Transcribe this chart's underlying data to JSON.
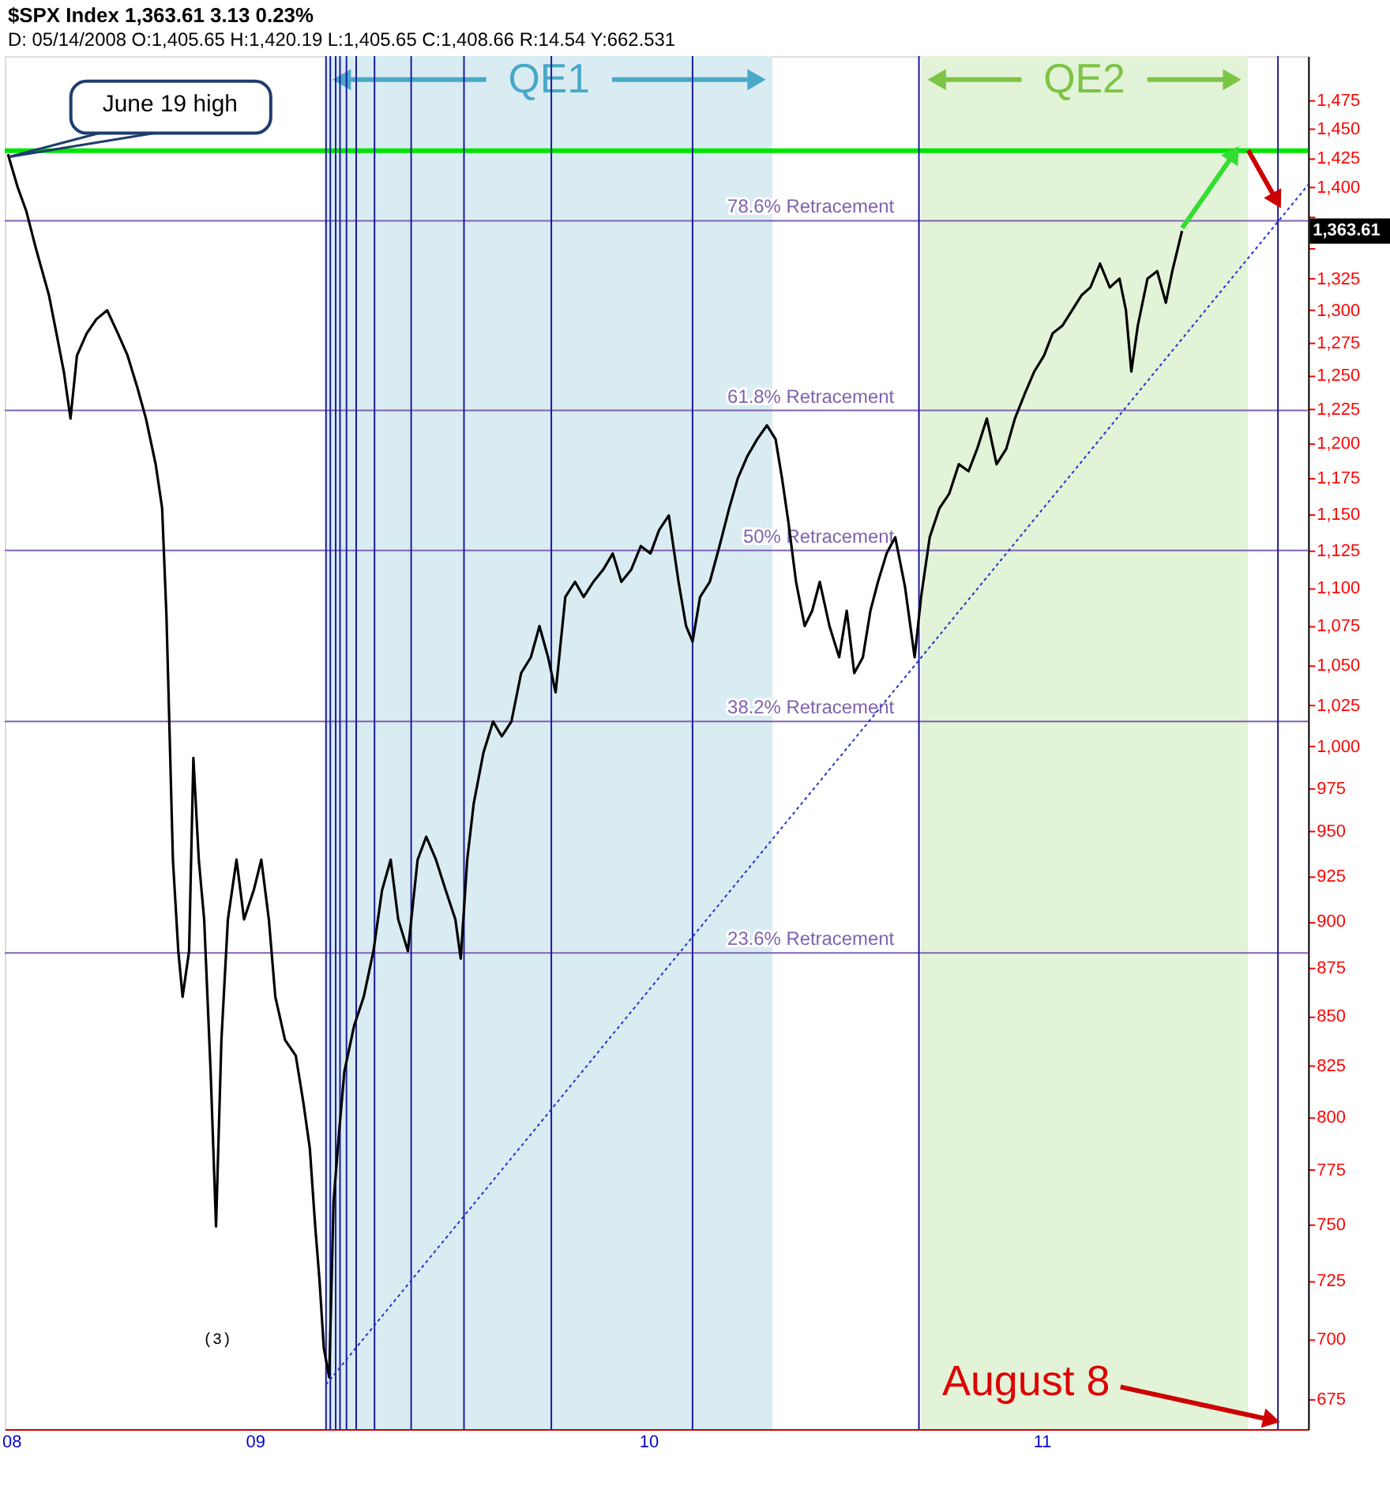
{
  "chart_data": {
    "type": "line",
    "title": "$SPX Index  1,363.61  3.13  0.23%",
    "subtitle": "D: 05/14/2008 O:1,405.65 H:1,420.19 L:1,405.65 C:1,408.66 R:14.54 Y:662.531",
    "x": [
      "2008-05-17",
      "2008-05-26",
      "2008-06-03",
      "2008-06-12",
      "2008-06-24",
      "2008-07-01",
      "2008-07-08",
      "2008-07-14",
      "2008-07-20",
      "2008-07-29",
      "2008-08-07",
      "2008-08-17",
      "2008-08-27",
      "2008-09-05",
      "2008-09-14",
      "2008-09-22",
      "2008-10-01",
      "2008-10-07",
      "2008-10-11",
      "2008-10-14",
      "2008-10-17",
      "2008-10-22",
      "2008-10-26",
      "2008-11-01",
      "2008-11-05",
      "2008-11-10",
      "2008-11-15",
      "2008-11-21",
      "2008-11-26",
      "2008-12-01",
      "2008-12-07",
      "2008-12-15",
      "2008-12-22",
      "2008-12-31",
      "2009-01-07",
      "2009-01-14",
      "2009-01-20",
      "2009-01-29",
      "2009-02-08",
      "2009-02-15",
      "2009-02-21",
      "2009-02-26",
      "2009-03-02",
      "2009-03-06",
      "2009-03-11",
      "2009-03-15",
      "2009-03-20",
      "2009-03-25",
      "2009-04-03",
      "2009-04-12",
      "2009-04-21",
      "2009-04-29",
      "2009-05-07",
      "2009-05-14",
      "2009-05-23",
      "2009-06-01",
      "2009-06-09",
      "2009-06-18",
      "2009-06-27",
      "2009-07-06",
      "2009-07-11",
      "2009-07-17",
      "2009-07-23",
      "2009-08-01",
      "2009-08-10",
      "2009-08-18",
      "2009-08-27",
      "2009-09-05",
      "2009-09-14",
      "2009-09-22",
      "2009-09-30",
      "2009-10-07",
      "2009-10-16",
      "2009-10-25",
      "2009-11-02",
      "2009-11-11",
      "2009-11-20",
      "2009-11-29",
      "2009-12-07",
      "2009-12-16",
      "2009-12-25",
      "2010-01-03",
      "2010-01-11",
      "2010-01-20",
      "2010-01-29",
      "2010-02-05",
      "2010-02-11",
      "2010-02-18",
      "2010-02-27",
      "2010-03-08",
      "2010-03-17",
      "2010-03-25",
      "2010-04-03",
      "2010-04-12",
      "2010-04-21",
      "2010-04-29",
      "2010-05-05",
      "2010-05-11",
      "2010-05-18",
      "2010-05-26",
      "2010-06-02",
      "2010-06-09",
      "2010-06-18",
      "2010-06-27",
      "2010-07-04",
      "2010-07-11",
      "2010-07-19",
      "2010-07-26",
      "2010-08-02",
      "2010-08-10",
      "2010-08-18",
      "2010-08-27",
      "2010-09-05",
      "2010-09-11",
      "2010-09-19",
      "2010-09-28",
      "2010-10-07",
      "2010-10-16",
      "2010-10-25",
      "2010-11-02",
      "2010-11-11",
      "2010-11-20",
      "2010-11-29",
      "2010-12-07",
      "2010-12-16",
      "2010-12-25",
      "2011-01-03",
      "2011-01-11",
      "2011-01-20",
      "2011-01-29",
      "2011-02-07",
      "2011-02-15",
      "2011-02-24",
      "2011-03-05",
      "2011-03-14",
      "2011-03-20",
      "2011-03-25",
      "2011-03-31",
      "2011-04-09",
      "2011-04-18",
      "2011-04-26",
      "2011-05-02",
      "2011-05-11"
    ],
    "series": [
      {
        "color": "#000000",
        "values": [
          1428,
          1400,
          1380,
          1349,
          1312,
          1282,
          1252,
          1218,
          1265,
          1282,
          1293,
          1300,
          1282,
          1265,
          1241,
          1218,
          1185,
          1154,
          1082,
          1006,
          934,
          884,
          860,
          884,
          993,
          934,
          901,
          822,
          749,
          838,
          901,
          934,
          901,
          917,
          934,
          901,
          860,
          838,
          830,
          807,
          785,
          749,
          725,
          696,
          684,
          760,
          792,
          822,
          845,
          860,
          884,
          917,
          934,
          901,
          884,
          934,
          947,
          934,
          917,
          901,
          880,
          934,
          966,
          996,
          1015,
          1006,
          1015,
          1045,
          1055,
          1075,
          1055,
          1033,
          1094,
          1104,
          1094,
          1104,
          1112,
          1123,
          1104,
          1112,
          1128,
          1123,
          1139,
          1149,
          1104,
          1075,
          1065,
          1094,
          1104,
          1128,
          1154,
          1175,
          1191,
          1203,
          1213,
          1203,
          1175,
          1144,
          1104,
          1075,
          1085,
          1104,
          1075,
          1055,
          1085,
          1045,
          1055,
          1085,
          1104,
          1123,
          1134,
          1101,
          1055,
          1094,
          1134,
          1154,
          1164,
          1185,
          1180,
          1196,
          1218,
          1185,
          1196,
          1218,
          1236,
          1253,
          1265,
          1282,
          1288,
          1300,
          1312,
          1318,
          1337,
          1318,
          1325,
          1300,
          1253,
          1288,
          1325,
          1331,
          1306,
          1331,
          1363.61
        ]
      },
      {
        "type": "line",
        "color": "#2233cc",
        "line_style": "dotted",
        "x": [
          "2009-03-08",
          "2011-09-05"
        ],
        "values": [
          681,
          1402
        ]
      }
    ],
    "xlim": [
      "2008-05-14",
      "2011-09-05"
    ],
    "xticks": [
      {
        "value": "2008-05-20",
        "label": "08"
      },
      {
        "value": "2009-01-01",
        "label": "09"
      },
      {
        "value": "2010-01-01",
        "label": "10"
      },
      {
        "value": "2011-01-01",
        "label": "11"
      }
    ],
    "ylim": [
      663,
      1515
    ],
    "yticks": [
      {
        "value": 675,
        "label": "675"
      },
      {
        "value": 700,
        "label": "700"
      },
      {
        "value": 725,
        "label": "725"
      },
      {
        "value": 750,
        "label": "750"
      },
      {
        "value": 775,
        "label": "775"
      },
      {
        "value": 800,
        "label": "800"
      },
      {
        "value": 825,
        "label": "825"
      },
      {
        "value": 850,
        "label": "850"
      },
      {
        "value": 875,
        "label": "875"
      },
      {
        "value": 900,
        "label": "900"
      },
      {
        "value": 925,
        "label": "925"
      },
      {
        "value": 950,
        "label": "950"
      },
      {
        "value": 975,
        "label": "975"
      },
      {
        "value": 1000,
        "label": "1,000"
      },
      {
        "value": 1025,
        "label": "1,025"
      },
      {
        "value": 1050,
        "label": "1,050"
      },
      {
        "value": 1075,
        "label": "1,075"
      },
      {
        "value": 1100,
        "label": "1,100"
      },
      {
        "value": 1125,
        "label": "1,125"
      },
      {
        "value": 1150,
        "label": "1,150"
      },
      {
        "value": 1175,
        "label": "1,175"
      },
      {
        "value": 1200,
        "label": "1,200"
      },
      {
        "value": 1225,
        "label": "1,225"
      },
      {
        "value": 1250,
        "label": "1,250"
      },
      {
        "value": 1275,
        "label": "1,275"
      },
      {
        "value": 1300,
        "label": "1,300"
      },
      {
        "value": 1325,
        "label": "1,325"
      },
      {
        "value": 1350,
        "label": null
      },
      {
        "value": 1375,
        "label": null
      },
      {
        "value": 1400,
        "label": "1,400"
      },
      {
        "value": 1425,
        "label": "1,425"
      },
      {
        "value": 1450,
        "label": "1,450"
      },
      {
        "value": 1475,
        "label": "1,475"
      }
    ],
    "log": true,
    "grid": false,
    "ref_lines": [
      {
        "axis": "y",
        "value": 1431,
        "color": "#00e600"
      },
      {
        "axis": "y",
        "value": 1372,
        "label": "78.6% Retracement",
        "color": "#7f63b0"
      },
      {
        "axis": "y",
        "value": 1224,
        "label": "61.8% Retracement",
        "color": "#7f63b0"
      },
      {
        "axis": "y",
        "value": 1125,
        "label": "50% Retracement",
        "color": "#7f63b0"
      },
      {
        "axis": "y",
        "value": 1015,
        "label": "38.2% Retracement",
        "color": "#7f63b0"
      },
      {
        "axis": "y",
        "value": 883,
        "label": "23.6% Retracement",
        "color": "#7f63b0"
      },
      {
        "axis": "x",
        "value": "2009-03-08",
        "color": "#1a1a9c"
      },
      {
        "axis": "x",
        "value": "2009-03-12",
        "color": "#1a1a9c"
      },
      {
        "axis": "x",
        "value": "2009-03-17",
        "color": "#1a1a9c"
      },
      {
        "axis": "x",
        "value": "2009-03-21",
        "color": "#1a1a9c"
      },
      {
        "axis": "x",
        "value": "2009-03-27",
        "color": "#1a1a9c"
      },
      {
        "axis": "x",
        "value": "2009-04-05",
        "color": "#1a1a9c"
      },
      {
        "axis": "x",
        "value": "2009-04-22",
        "color": "#1a1a9c"
      },
      {
        "axis": "x",
        "value": "2009-05-26",
        "color": "#1a1a9c"
      },
      {
        "axis": "x",
        "value": "2009-07-14",
        "color": "#1a1a9c"
      },
      {
        "axis": "x",
        "value": "2009-10-03",
        "color": "#1a1a9c"
      },
      {
        "axis": "x",
        "value": "2010-02-11",
        "color": "#1a1a9c"
      },
      {
        "axis": "x",
        "value": "2010-09-09",
        "color": "#1a1a9c"
      },
      {
        "axis": "x",
        "value": "2011-08-08",
        "color": "#1a1a9c"
      }
    ],
    "bands": [
      {
        "axis": "x",
        "from": "2009-03-08",
        "to": "2010-04-26",
        "label": "QE1",
        "color": "#d9ecf2"
      },
      {
        "axis": "x",
        "from": "2010-09-11",
        "to": "2011-07-11",
        "label": "QE2",
        "color": "#e2f3d8"
      }
    ],
    "annotations": [
      {
        "text": "June 19 high",
        "x": "2008-05-17",
        "y": 1428
      },
      "(3)",
      {
        "text": "August 8",
        "x": "2011-08-08",
        "y": 666
      },
      "1,363.61"
    ]
  }
}
